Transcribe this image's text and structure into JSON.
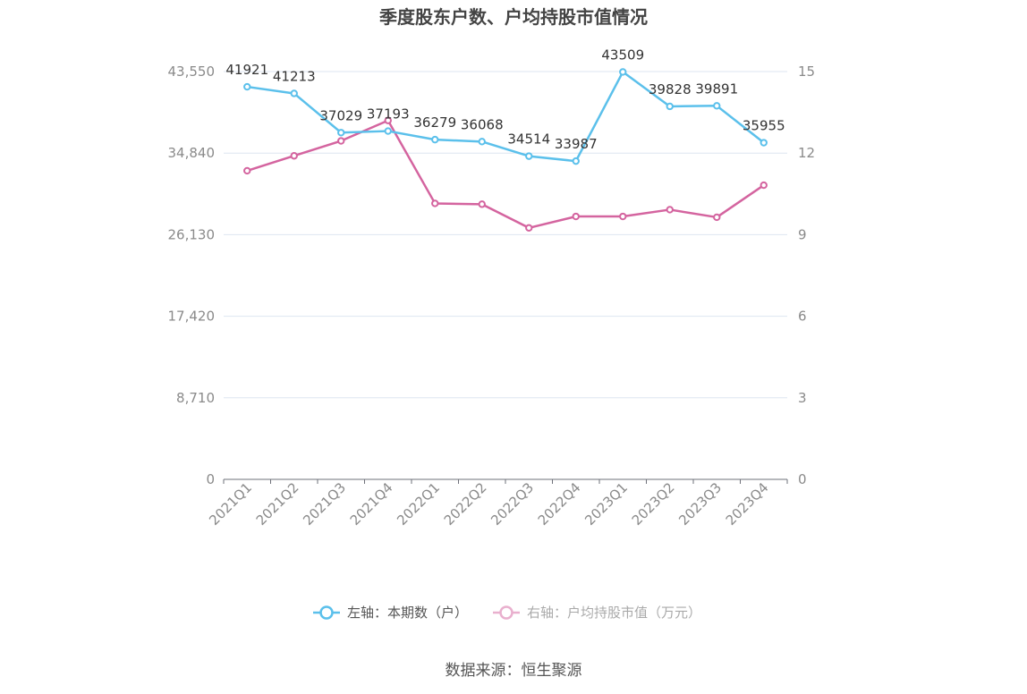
{
  "chart_data": {
    "type": "line",
    "title": "季度股东户数、户均持股市值情况",
    "categories": [
      "2021Q1",
      "2021Q2",
      "2021Q3",
      "2021Q4",
      "2022Q1",
      "2022Q2",
      "2022Q3",
      "2022Q4",
      "2023Q1",
      "2023Q2",
      "2023Q3",
      "2023Q4"
    ],
    "y_left": {
      "ticks": [
        "0",
        "8,710",
        "17,420",
        "26,130",
        "34,840",
        "43,550"
      ],
      "ylim": [
        0,
        43550
      ]
    },
    "y_right": {
      "ticks": [
        "0",
        "3",
        "6",
        "9",
        "12",
        "15"
      ],
      "ylim": [
        0,
        15
      ]
    },
    "grid": true,
    "legend_position": "bottom",
    "series": [
      {
        "name": "左轴：本期数（户）",
        "axis": "left",
        "color": "#5bc0eb",
        "values": [
          41921,
          41213,
          37029,
          37193,
          36279,
          36068,
          34514,
          33987,
          43509,
          39828,
          39891,
          35955
        ],
        "labels": [
          "41921",
          "41213",
          "37029",
          "37193",
          "36279",
          "36068",
          "34514",
          "33987",
          "43509",
          "39828",
          "39891",
          "35955"
        ]
      },
      {
        "name": "右轴：户均持股市值（万元）",
        "axis": "right",
        "color": "#d4649f",
        "values": [
          11.35,
          11.9,
          12.45,
          13.2,
          10.15,
          10.12,
          9.25,
          9.67,
          9.67,
          9.92,
          9.64,
          10.82
        ]
      }
    ]
  },
  "source": "数据来源：恒生聚源"
}
